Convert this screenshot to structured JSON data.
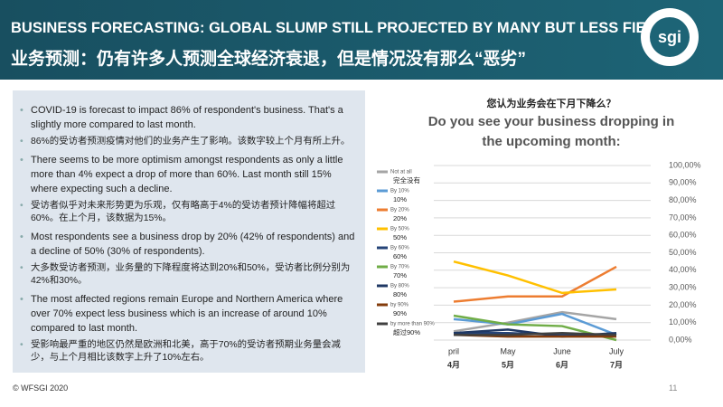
{
  "header": {
    "title": "BUSINESS FORECASTING: GLOBAL SLUMP STILL PROJECTED BY MANY BUT LESS FIERCE",
    "subtitle": "业务预测：仍有许多人预测全球经济衰退，但是情况没有那么“恶劣”",
    "logo": "sgi"
  },
  "bullets": [
    {
      "lang": "en",
      "text": "COVID-19 is forecast to impact 86% of respondent's business. That's a slightly more compared to last month."
    },
    {
      "lang": "cn",
      "text": "86%的受访者预测疫情对他们的业务产生了影响。该数字较上个月有所上升。"
    },
    {
      "lang": "en",
      "text": "There seems to be more optimism amongst respondents as only a little more than 4% expect a drop of more than 60%. Last month still 15% where expecting such a decline."
    },
    {
      "lang": "cn",
      "text": "受访者似乎对未来形势更为乐观，仅有略高于4%的受访者预计降幅将超过60%。在上个月，该数据为15%。"
    },
    {
      "lang": "en",
      "text": "Most respondents see a business drop by 20% (42% of respondents) and a decline of 50% (30% of respondents)."
    },
    {
      "lang": "cn",
      "text": "大多数受访者预测，业务量的下降程度将达到20%和50%，受访者比例分别为42%和30%。"
    },
    {
      "lang": "en",
      "text": "The most affected regions remain Europe and Northern America where over 70% expect less business which is an increase of around 10% compared to last month."
    },
    {
      "lang": "cn",
      "text": "受影响最严重的地区仍然是欧洲和北美，高于70%的受访者预期业务量会减少，与上个月相比该数字上升了10%左右。"
    }
  ],
  "footer": "© WFSGI 2020",
  "page_number": "11",
  "chart_data": {
    "type": "line",
    "title": "您认为业务会在下月下降么？",
    "subtitle": "Do you see your business dropping in the upcoming month:",
    "categories": [
      "pril",
      "May",
      "June",
      "July"
    ],
    "categories_cn": [
      "4月",
      "5月",
      "6月",
      "7月"
    ],
    "ylim": [
      0,
      100
    ],
    "yticks": [
      {
        "value": 0,
        "label": "0,00%"
      },
      {
        "value": 10,
        "label": "10,00%"
      },
      {
        "value": 20,
        "label": "20,00%"
      },
      {
        "value": 30,
        "label": "30,00%"
      },
      {
        "value": 40,
        "label": "40,00%"
      },
      {
        "value": 50,
        "label": "50,00%"
      },
      {
        "value": 60,
        "label": "60,00%"
      },
      {
        "value": 70,
        "label": "70,00%"
      },
      {
        "value": 80,
        "label": "80,00%"
      },
      {
        "value": 90,
        "label": "90,00%"
      },
      {
        "value": 100,
        "label": "100,00%"
      }
    ],
    "grid": true,
    "series": [
      {
        "name": "Not at all",
        "name_cn": "完全没有",
        "color": "#a5a5a5",
        "values": [
          5,
          10,
          16,
          12
        ]
      },
      {
        "name": "By 10%",
        "name_cn": "10%",
        "color": "#5b9bd5",
        "values": [
          12,
          9,
          15,
          3
        ]
      },
      {
        "name": "By 20%",
        "name_cn": "20%",
        "color": "#ed7d31",
        "values": [
          22,
          25,
          25,
          42
        ]
      },
      {
        "name": "By 50%",
        "name_cn": "50%",
        "color": "#ffc000",
        "values": [
          45,
          37,
          27,
          29
        ]
      },
      {
        "name": "By 60%",
        "name_cn": "60%",
        "color": "#264478",
        "values": [
          4,
          4,
          3,
          3
        ]
      },
      {
        "name": "By 70%",
        "name_cn": "70%",
        "color": "#70ad47",
        "values": [
          14,
          9,
          8,
          0
        ]
      },
      {
        "name": "By 80%",
        "name_cn": "80%",
        "color": "#1f3864",
        "values": [
          4,
          6,
          2,
          4
        ]
      },
      {
        "name": "by 90%",
        "name_cn": "90%",
        "color": "#843c0c",
        "values": [
          3,
          2,
          2,
          2
        ]
      },
      {
        "name": "by more than 90%",
        "name_cn": "超过90%",
        "color": "#404040",
        "values": [
          3,
          3,
          4,
          3
        ]
      }
    ]
  }
}
